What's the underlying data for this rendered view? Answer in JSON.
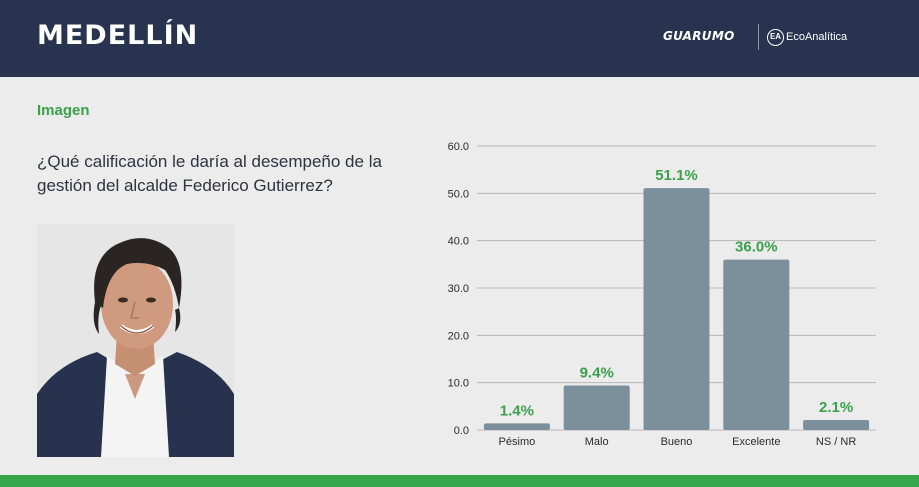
{
  "header": {
    "city": "MEDELLÍN",
    "brand_primary": "GUARUMO",
    "brand_secondary": "EcoAnalítica",
    "brand_secondary_icon_text": "EA",
    "background_color": "#27334f"
  },
  "section_label": "Imagen",
  "question": "¿Qué calificación le daría al desempeño de la gestión del alcalde Federico Gutierrez?",
  "photo_description_icon": "portrait-photo",
  "colors": {
    "bar": "#7b8f9c",
    "value_label": "#3aa14a",
    "grid": "#b8b8b8",
    "footer": "#38a64a"
  },
  "chart_data": {
    "type": "bar",
    "categories": [
      "Pésimo",
      "Malo",
      "Bueno",
      "Excelente",
      "NS / NR"
    ],
    "values": [
      1.4,
      9.4,
      51.1,
      36.0,
      2.1
    ],
    "value_labels": [
      "1.4%",
      "9.4%",
      "51.1%",
      "36.0%",
      "2.1%"
    ],
    "ylim": [
      0,
      60
    ],
    "yticks": [
      "0.0",
      "10.0",
      "20.0",
      "30.0",
      "40.0",
      "50.0",
      "60.0"
    ],
    "ytick_values": [
      0,
      10,
      20,
      30,
      40,
      50,
      60
    ],
    "grid": true
  }
}
